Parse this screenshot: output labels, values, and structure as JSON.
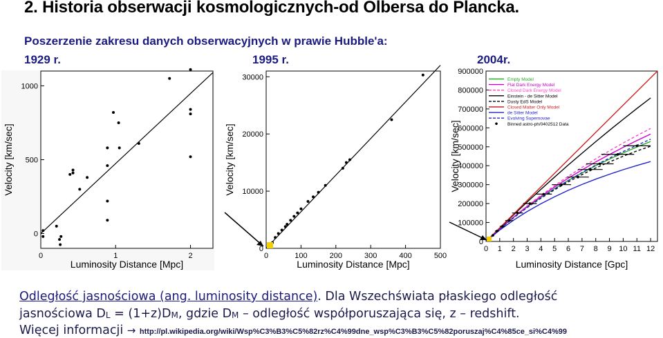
{
  "title": "2. Historia obserwacji kosmologicznych-od Olbersa do Plancka.",
  "subtitle": "Poszerzenie zakresu danych obserwacyjnych w prawie Hubble'a:",
  "years": [
    "1929 r.",
    "1995 r.",
    "2004r."
  ],
  "body": {
    "luminosity_link": "Odległość jasnościowa (ang. luminosity distance)",
    "line1_rest": ". Dla Wszechświata płaskiego odległość",
    "line2_a": "jasnościowa D",
    "sub_L": "L",
    "line2_b": " = (1+z)D",
    "sub_M": "M",
    "line2_c": ", gdzie D",
    "line2_d": " – odległość współporuszająca się, z – redshift.",
    "more_info": "Więcej informacji",
    "arrow": "→",
    "url": "http://pl.wikipedia.org/wiki/Wsp%C3%B3%C5%82rz%C4%99dne_wsp%C3%B3%C5%82poruszaj%C4%85ce_si%C4%99"
  },
  "chart_data": [
    {
      "type": "scatter",
      "xlabel": "Luminosity Distance [Mpc]",
      "ylabel": "Velocity [km/sec]",
      "xlim": [
        0,
        2.3
      ],
      "ylim": [
        -100,
        1100
      ],
      "xticks": [
        0,
        1,
        2
      ],
      "yticks": [
        0,
        500,
        1000
      ],
      "points": [
        [
          0.03,
          20
        ],
        [
          0.03,
          -20
        ],
        [
          0.21,
          50
        ],
        [
          0.25,
          -40
        ],
        [
          0.26,
          -75
        ],
        [
          0.27,
          -20
        ],
        [
          0.39,
          400
        ],
        [
          0.43,
          430
        ],
        [
          0.43,
          410
        ],
        [
          0.52,
          300
        ],
        [
          0.62,
          380
        ],
        [
          0.89,
          580
        ],
        [
          0.89,
          460
        ],
        [
          0.89,
          220
        ],
        [
          0.89,
          90
        ],
        [
          0.97,
          820
        ],
        [
          1.04,
          750
        ],
        [
          1.05,
          580
        ],
        [
          1.31,
          610
        ],
        [
          1.72,
          1050
        ],
        [
          2.0,
          1110
        ],
        [
          2.0,
          840
        ],
        [
          2.0,
          810
        ],
        [
          2.0,
          520
        ]
      ],
      "fit": [
        [
          0,
          0
        ],
        [
          2.3,
          1090
        ]
      ]
    },
    {
      "type": "scatter",
      "xlabel": "Luminosity Distance [Mpc]",
      "ylabel": "Velocity [km/sec]",
      "xlim": [
        0,
        500
      ],
      "ylim": [
        0,
        31000
      ],
      "xticks": [
        0,
        100,
        200,
        300,
        400,
        500
      ],
      "yticks": [
        0,
        10000,
        20000,
        30000
      ],
      "points": [
        [
          18,
          1000
        ],
        [
          26,
          1900
        ],
        [
          35,
          2600
        ],
        [
          45,
          3200
        ],
        [
          55,
          3800
        ],
        [
          60,
          4200
        ],
        [
          70,
          4900
        ],
        [
          80,
          5600
        ],
        [
          90,
          6200
        ],
        [
          100,
          6900
        ],
        [
          120,
          8200
        ],
        [
          135,
          9000
        ],
        [
          150,
          9800
        ],
        [
          170,
          11000
        ],
        [
          220,
          14000
        ],
        [
          230,
          15000
        ],
        [
          240,
          15500
        ],
        [
          360,
          22500
        ],
        [
          450,
          30300
        ]
      ],
      "fit": [
        [
          0,
          0
        ],
        [
          500,
          32000
        ]
      ]
    },
    {
      "type": "line",
      "xlabel": "Luminosity Distance [Gpc]",
      "ylabel": "Velocity [km/sec]",
      "xlim": [
        0,
        12.5
      ],
      "ylim": [
        0,
        900000
      ],
      "xticks": [
        0,
        1,
        2,
        3,
        4,
        5,
        6,
        7,
        8,
        9,
        10,
        11,
        12
      ],
      "yticks": [
        0,
        100000,
        200000,
        300000,
        400000,
        500000,
        600000,
        700000,
        800000,
        900000
      ],
      "series": [
        {
          "name": "Empty Model",
          "color": "#22aa22",
          "dash": false,
          "values": [
            [
              0,
              0
            ],
            [
              1,
              67000
            ],
            [
              2,
              127000
            ],
            [
              3,
              182000
            ],
            [
              4,
              232000
            ],
            [
              5,
              279000
            ],
            [
              6,
              322000
            ],
            [
              7,
              362000
            ],
            [
              8,
              400000
            ],
            [
              9,
              435000
            ],
            [
              10,
              468000
            ],
            [
              11,
              499000
            ],
            [
              12,
              528000
            ]
          ]
        },
        {
          "name": "Flat Dark Energy Model",
          "color": "#cc00cc",
          "dash": false,
          "values": [
            [
              0,
              0
            ],
            [
              1,
              67000
            ],
            [
              2,
              128000
            ],
            [
              3,
              185000
            ],
            [
              4,
              238000
            ],
            [
              5,
              288000
            ],
            [
              6,
              334000
            ],
            [
              7,
              378000
            ],
            [
              8,
              420000
            ],
            [
              9,
              459000
            ],
            [
              10,
              497000
            ],
            [
              11,
              533000
            ],
            [
              12,
              567000
            ]
          ]
        },
        {
          "name": "Closed Dark Energy Model",
          "color": "#ff44cc",
          "dash": true,
          "values": [
            [
              0,
              0
            ],
            [
              1,
              67000
            ],
            [
              2,
              129000
            ],
            [
              3,
              188000
            ],
            [
              4,
              243000
            ],
            [
              5,
              295000
            ],
            [
              6,
              344000
            ],
            [
              7,
              391000
            ],
            [
              8,
              436000
            ],
            [
              9,
              479000
            ],
            [
              10,
              520000
            ],
            [
              11,
              559000
            ],
            [
              12,
              597000
            ]
          ]
        },
        {
          "name": "Einstein - de Sitter Model",
          "color": "#000000",
          "dash": false,
          "values": [
            [
              0,
              0
            ],
            [
              1,
              70000
            ],
            [
              2,
              140000
            ],
            [
              3,
              208000
            ],
            [
              4,
              275000
            ],
            [
              5,
              340000
            ],
            [
              6,
              404000
            ],
            [
              7,
              466000
            ],
            [
              8,
              527000
            ],
            [
              9,
              587000
            ],
            [
              10,
              645000
            ],
            [
              11,
              702000
            ],
            [
              12,
              758000
            ]
          ]
        },
        {
          "name": "Dusty EdS Model",
          "color": "#000000",
          "dash": true,
          "values": [
            [
              0,
              0
            ],
            [
              1,
              66000
            ],
            [
              2,
              125000
            ],
            [
              3,
              179000
            ],
            [
              4,
              228000
            ],
            [
              5,
              273000
            ],
            [
              6,
              315000
            ],
            [
              7,
              353000
            ],
            [
              8,
              388000
            ],
            [
              9,
              420000
            ],
            [
              10,
              450000
            ],
            [
              11,
              478000
            ],
            [
              12,
              503000
            ]
          ]
        },
        {
          "name": "Closed Matter Only Model",
          "color": "#cc2222",
          "dash": false,
          "values": [
            [
              0,
              0
            ],
            [
              12.5,
              900000
            ]
          ]
        },
        {
          "name": "de Sitter Model",
          "color": "#2222cc",
          "dash": false,
          "values": [
            [
              0,
              0
            ],
            [
              1,
              60000
            ],
            [
              2,
              112000
            ],
            [
              3,
              158000
            ],
            [
              4,
              199000
            ],
            [
              5,
              236000
            ],
            [
              6,
              270000
            ],
            [
              7,
              301000
            ],
            [
              8,
              329000
            ],
            [
              9,
              355000
            ],
            [
              10,
              379000
            ],
            [
              11,
              401000
            ],
            [
              12,
              422000
            ]
          ]
        },
        {
          "name": "Evolving Supernovae",
          "color": "#2222cc",
          "dash": true,
          "values": [
            [
              0,
              0
            ],
            [
              1,
              65000
            ],
            [
              2,
              124000
            ],
            [
              3,
              179000
            ],
            [
              4,
              230000
            ],
            [
              5,
              277000
            ],
            [
              6,
              322000
            ],
            [
              7,
              364000
            ],
            [
              8,
              403000
            ],
            [
              9,
              440000
            ],
            [
              10,
              475000
            ],
            [
              11,
              508000
            ],
            [
              12,
              540000
            ]
          ]
        }
      ],
      "binned_data": {
        "name": "Binned astro-ph/0402512 Data",
        "points": [
          [
            0.2,
            15000
          ],
          [
            0.5,
            32000
          ],
          [
            0.8,
            55000
          ],
          [
            1.2,
            80000
          ],
          [
            1.7,
            110000
          ],
          [
            2.3,
            150000
          ],
          [
            3.2,
            200000
          ],
          [
            4.2,
            250000
          ],
          [
            5.5,
            300000
          ],
          [
            6.7,
            340000
          ],
          [
            7.6,
            380000
          ],
          [
            8.3,
            410000
          ],
          [
            9.6,
            460000
          ],
          [
            11.0,
            505000
          ]
        ],
        "xerr": [
          0.1,
          0.1,
          0.15,
          0.2,
          0.3,
          0.4,
          0.5,
          0.6,
          0.7,
          0.8,
          0.9,
          1.0,
          1.2,
          1.0
        ]
      }
    }
  ]
}
